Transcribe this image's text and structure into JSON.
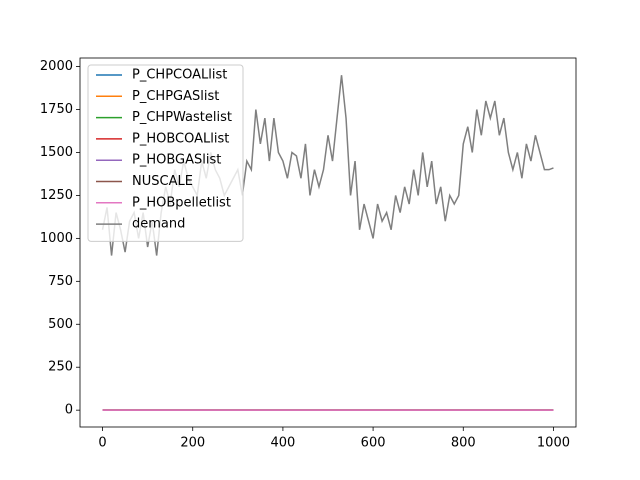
{
  "chart_data": {
    "type": "line",
    "xlim": [
      -50,
      1050
    ],
    "xticks": [
      0,
      200,
      400,
      600,
      800,
      1000
    ],
    "ylim": [
      -98,
      2050
    ],
    "yticks": [
      0,
      250,
      500,
      750,
      1000,
      1250,
      1500,
      1750,
      2000
    ],
    "legend": "upper left",
    "series": [
      {
        "name": "P_CHPCOALlist",
        "color": "#1f77b4",
        "x": [
          0,
          1000
        ],
        "values": [
          0,
          0
        ]
      },
      {
        "name": "P_CHPGASlist",
        "color": "#ff7f0e",
        "x": [
          0,
          1000
        ],
        "values": [
          0,
          0
        ]
      },
      {
        "name": "P_CHPWastelist",
        "color": "#2ca02c",
        "x": [
          0,
          1000
        ],
        "values": [
          0,
          0
        ]
      },
      {
        "name": "P_HOBCOALlist",
        "color": "#d62728",
        "x": [
          0,
          1000
        ],
        "values": [
          0,
          0
        ]
      },
      {
        "name": "P_HOBGASlist",
        "color": "#9467bd",
        "x": [
          0,
          1000
        ],
        "values": [
          0,
          0
        ]
      },
      {
        "name": "NUSCALE",
        "color": "#8c564b",
        "x": [
          0,
          1000
        ],
        "values": [
          0,
          0
        ]
      },
      {
        "name": "P_HOBpelletlist",
        "color": "#e377c2",
        "x": [
          0,
          1000
        ],
        "values": [
          0,
          0
        ]
      },
      {
        "name": "demand",
        "color": "#7f7f7f",
        "x": [
          0,
          10,
          20,
          30,
          40,
          50,
          60,
          70,
          80,
          90,
          100,
          110,
          120,
          130,
          140,
          150,
          160,
          170,
          180,
          190,
          200,
          210,
          220,
          230,
          240,
          250,
          260,
          270,
          280,
          290,
          300,
          310,
          320,
          330,
          340,
          350,
          360,
          370,
          380,
          390,
          400,
          410,
          420,
          430,
          440,
          450,
          460,
          470,
          480,
          490,
          500,
          510,
          520,
          530,
          540,
          550,
          560,
          570,
          580,
          590,
          600,
          610,
          620,
          630,
          640,
          650,
          660,
          670,
          680,
          690,
          700,
          710,
          720,
          730,
          740,
          750,
          760,
          770,
          780,
          790,
          800,
          810,
          820,
          830,
          840,
          850,
          860,
          870,
          880,
          890,
          900,
          910,
          920,
          930,
          940,
          950,
          960,
          970,
          980,
          990,
          1000
        ],
        "values": [
          1050,
          1180,
          900,
          1150,
          1050,
          920,
          1100,
          1150,
          1000,
          1150,
          950,
          1100,
          900,
          1150,
          1300,
          1200,
          1400,
          1300,
          1450,
          1350,
          1300,
          1250,
          1450,
          1350,
          1500,
          1400,
          1350,
          1250,
          1300,
          1350,
          1400,
          1250,
          1450,
          1400,
          1750,
          1550,
          1700,
          1450,
          1700,
          1500,
          1450,
          1350,
          1500,
          1480,
          1350,
          1550,
          1250,
          1400,
          1300,
          1400,
          1600,
          1450,
          1700,
          1950,
          1700,
          1250,
          1450,
          1050,
          1200,
          1100,
          1000,
          1200,
          1100,
          1150,
          1050,
          1250,
          1150,
          1300,
          1200,
          1400,
          1250,
          1500,
          1300,
          1450,
          1200,
          1300,
          1100,
          1250,
          1200,
          1250,
          1550,
          1650,
          1500,
          1750,
          1600,
          1800,
          1700,
          1800,
          1600,
          1700,
          1500,
          1400,
          1500,
          1350,
          1550,
          1450,
          1600,
          1500,
          1400,
          1400,
          1410
        ]
      }
    ]
  }
}
